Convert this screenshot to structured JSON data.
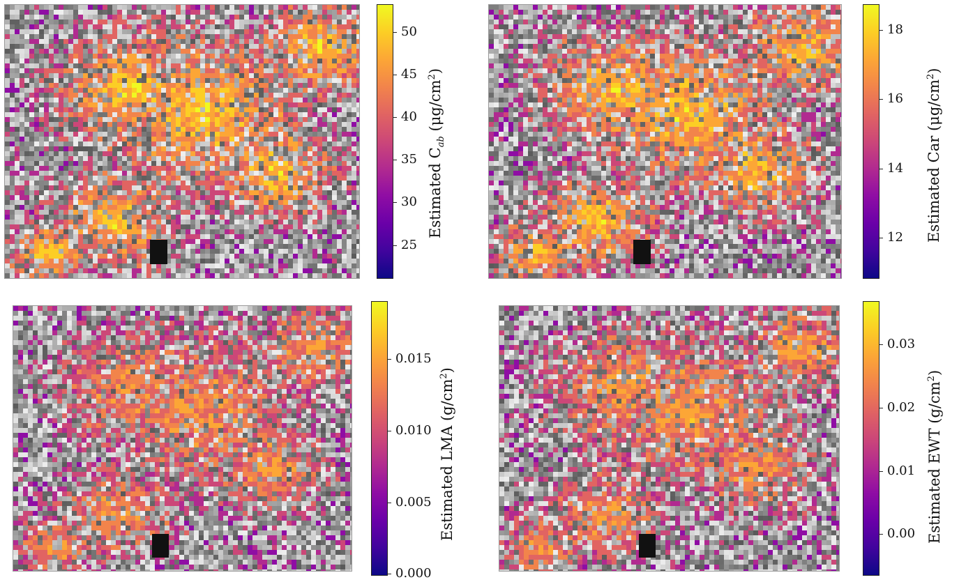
{
  "panels": [
    {
      "id": "cab",
      "label_prefix": "Estimated C",
      "label_sub": "ab",
      "label_suffix": " (μg/cm",
      "label_sup": "2",
      "label_end": ")",
      "ticks": [
        "50",
        "45",
        "40",
        "35",
        "30",
        "25"
      ],
      "colormap": "plasma",
      "range": [
        21,
        53
      ]
    },
    {
      "id": "car",
      "label_prefix": "Estimated Car (μg/cm",
      "label_sup": "2",
      "label_end": ")",
      "ticks": [
        "18",
        "16",
        "14",
        "12"
      ],
      "colormap": "plasma",
      "range": [
        10.8,
        18.6
      ]
    },
    {
      "id": "lma",
      "label_prefix": "Estimated LMA (g/cm",
      "label_sup": "2",
      "label_end": ")",
      "ticks": [
        "0.015",
        "0.010",
        "0.005",
        "0.000"
      ],
      "colormap": "plasma",
      "range": [
        0.0,
        0.019
      ]
    },
    {
      "id": "ewt",
      "label_prefix": "Estimated EWT (g/cm",
      "label_sup": "2",
      "label_end": ")",
      "ticks": [
        "0.03",
        "0.02",
        "0.01",
        "0.00"
      ],
      "colormap": "plasma",
      "range": [
        -0.007,
        0.036
      ]
    }
  ]
}
